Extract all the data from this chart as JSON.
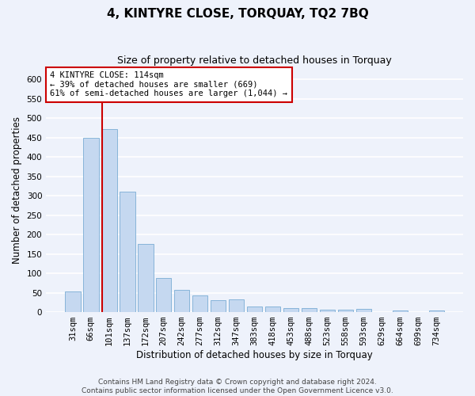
{
  "title": "4, KINTYRE CLOSE, TORQUAY, TQ2 7BQ",
  "subtitle": "Size of property relative to detached houses in Torquay",
  "xlabel": "Distribution of detached houses by size in Torquay",
  "ylabel": "Number of detached properties",
  "categories": [
    "31sqm",
    "66sqm",
    "101sqm",
    "137sqm",
    "172sqm",
    "207sqm",
    "242sqm",
    "277sqm",
    "312sqm",
    "347sqm",
    "383sqm",
    "418sqm",
    "453sqm",
    "488sqm",
    "523sqm",
    "558sqm",
    "593sqm",
    "629sqm",
    "664sqm",
    "699sqm",
    "734sqm"
  ],
  "values": [
    54,
    450,
    472,
    311,
    176,
    88,
    58,
    43,
    30,
    32,
    15,
    15,
    10,
    10,
    6,
    6,
    9,
    1,
    4,
    1,
    4
  ],
  "bar_color": "#c5d8f0",
  "bar_edge_color": "#7aadd4",
  "ylim": [
    0,
    630
  ],
  "yticks": [
    0,
    50,
    100,
    150,
    200,
    250,
    300,
    350,
    400,
    450,
    500,
    550,
    600
  ],
  "red_line_color": "#cc0000",
  "red_line_x": 1.6,
  "annotation_text": "4 KINTYRE CLOSE: 114sqm\n← 39% of detached houses are smaller (669)\n61% of semi-detached houses are larger (1,044) →",
  "annotation_box_color": "#ffffff",
  "annotation_box_edge_color": "#cc0000",
  "footer_line1": "Contains HM Land Registry data © Crown copyright and database right 2024.",
  "footer_line2": "Contains public sector information licensed under the Open Government Licence v3.0.",
  "bg_color": "#eef2fb",
  "grid_color": "#ffffff",
  "title_fontsize": 11,
  "subtitle_fontsize": 9,
  "axis_label_fontsize": 8.5,
  "tick_fontsize": 7.5,
  "annotation_fontsize": 7.5,
  "footer_fontsize": 6.5
}
